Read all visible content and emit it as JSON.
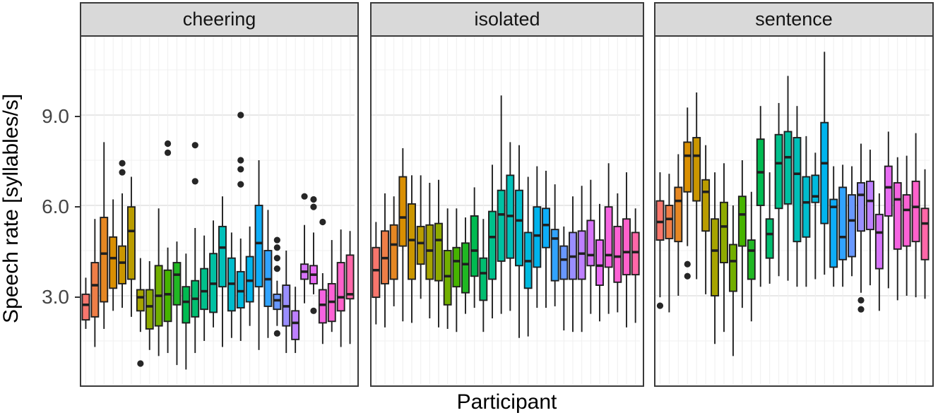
{
  "chart_data": {
    "type": "boxplot",
    "xlabel": "Participant",
    "ylabel": "Speech rate [syllables/s]",
    "yticks": [
      3.0,
      6.0,
      9.0
    ],
    "ytick_labels": [
      "3.0",
      "6.0",
      "9.0"
    ],
    "minor_gridlines": [
      1.5,
      4.5,
      7.5,
      10.5
    ],
    "ylim": [
      0.0,
      11.6
    ],
    "legend": "none",
    "grid": "on",
    "strip_bg": "#d9d9d9",
    "panel_border": "#3a3a3a",
    "box_stroke": "#1f1f1f",
    "colors": [
      "#F8766D",
      "#EF7E47",
      "#E58723",
      "#D98F02",
      "#CA9600",
      "#BA9D00",
      "#A7A400",
      "#8FAA00",
      "#72AF00",
      "#46B400",
      "#20B823",
      "#00BB51",
      "#00BE70",
      "#00C08B",
      "#00C1A2",
      "#00C0B9",
      "#00BDCD",
      "#00BADF",
      "#00B4ED",
      "#0DADF8",
      "#31A3FE",
      "#6898FF",
      "#9A8EFF",
      "#BE80FF",
      "#D674F9",
      "#E86CF3",
      "#F564E1",
      "#FC62D5",
      "#FF61CB",
      "#FF67A8"
    ],
    "facets": [
      {
        "label": "cheering",
        "boxes": [
          {
            "v": [
              1.9,
              2.2,
              2.7,
              3.05,
              3.6
            ],
            "out": []
          },
          {
            "v": [
              1.3,
              2.3,
              3.35,
              4.1,
              5.55
            ],
            "out": []
          },
          {
            "v": [
              1.9,
              2.8,
              4.4,
              5.6,
              8.1
            ],
            "out": []
          },
          {
            "v": [
              2.5,
              3.25,
              4.25,
              4.95,
              6.2
            ],
            "out": []
          },
          {
            "v": [
              2.6,
              3.4,
              4.1,
              4.65,
              6.4
            ],
            "out": [
              7.4,
              7.1
            ]
          },
          {
            "v": [
              2.3,
              3.55,
              5.15,
              5.95,
              6.95
            ],
            "out": []
          },
          {
            "v": [
              1.8,
              2.5,
              2.95,
              3.2,
              4.25
            ],
            "out": [
              0.75
            ]
          },
          {
            "v": [
              1.2,
              1.9,
              2.65,
              3.2,
              4.15
            ],
            "out": []
          },
          {
            "v": [
              1.0,
              2.0,
              3.0,
              4.0,
              5.9
            ],
            "out": []
          },
          {
            "v": [
              1.1,
              2.15,
              3.05,
              3.85,
              4.6
            ],
            "out": [
              8.05,
              7.75
            ]
          },
          {
            "v": [
              0.7,
              2.7,
              3.7,
              4.1,
              4.8
            ],
            "out": []
          },
          {
            "v": [
              0.55,
              2.1,
              2.8,
              3.3,
              4.4
            ],
            "out": []
          },
          {
            "v": [
              1.1,
              2.3,
              2.9,
              3.5,
              5.25
            ],
            "out": [
              8.0,
              6.8
            ]
          },
          {
            "v": [
              1.5,
              2.55,
              3.15,
              3.9,
              5.0
            ],
            "out": []
          },
          {
            "v": [
              1.95,
              2.45,
              3.4,
              4.4,
              5.5
            ],
            "out": []
          },
          {
            "v": [
              1.3,
              3.3,
              4.6,
              5.3,
              6.3
            ],
            "out": []
          },
          {
            "v": [
              1.6,
              2.5,
              3.4,
              4.25,
              5.1
            ],
            "out": []
          },
          {
            "v": [
              1.5,
              2.6,
              3.15,
              3.8,
              4.9
            ],
            "out": [
              9.0,
              7.5,
              7.2,
              6.7
            ]
          },
          {
            "v": [
              2.0,
              2.8,
              3.5,
              4.3,
              5.3
            ],
            "out": []
          },
          {
            "v": [
              1.2,
              3.3,
              4.75,
              6.0,
              7.5
            ],
            "out": []
          },
          {
            "v": [
              1.6,
              2.65,
              3.55,
              4.5,
              5.85
            ],
            "out": []
          },
          {
            "v": [
              2.0,
              2.55,
              2.85,
              3.05,
              3.5
            ],
            "out": [
              4.85,
              4.6,
              4.25,
              3.9,
              1.75
            ]
          },
          {
            "v": [
              1.1,
              2.0,
              2.65,
              3.35,
              4.5
            ],
            "out": []
          },
          {
            "v": [
              1.1,
              1.55,
              2.1,
              2.5,
              3.3
            ],
            "out": []
          },
          {
            "v": [
              2.75,
              3.55,
              3.8,
              4.05,
              5.35
            ],
            "out": [
              6.3
            ]
          },
          {
            "v": [
              3.05,
              3.4,
              3.7,
              4.0,
              5.1
            ],
            "out": [
              6.2,
              5.95,
              2.5
            ]
          },
          {
            "v": [
              1.4,
              2.1,
              2.7,
              3.2,
              3.75
            ],
            "out": [
              5.45
            ]
          },
          {
            "v": [
              1.8,
              2.15,
              2.8,
              3.4,
              4.85
            ],
            "out": []
          },
          {
            "v": [
              1.3,
              2.5,
              2.95,
              4.1,
              5.2
            ],
            "out": []
          },
          {
            "v": [
              1.4,
              2.9,
              3.05,
              4.35,
              5.15
            ],
            "out": []
          }
        ]
      },
      {
        "label": "isolated",
        "boxes": [
          {
            "v": [
              2.05,
              2.95,
              3.85,
              4.6,
              5.45
            ],
            "out": []
          },
          {
            "v": [
              1.95,
              3.4,
              4.25,
              5.15,
              6.4
            ],
            "out": []
          },
          {
            "v": [
              2.65,
              3.55,
              4.7,
              5.35,
              6.3
            ],
            "out": []
          },
          {
            "v": [
              2.15,
              4.65,
              5.6,
              6.95,
              7.9
            ],
            "out": []
          },
          {
            "v": [
              2.1,
              3.55,
              4.85,
              6.05,
              7.0
            ],
            "out": []
          },
          {
            "v": [
              2.9,
              4.05,
              4.75,
              5.3,
              7.0
            ],
            "out": []
          },
          {
            "v": [
              2.25,
              3.55,
              4.5,
              5.35,
              6.75
            ],
            "out": []
          },
          {
            "v": [
              1.95,
              3.5,
              4.85,
              5.4,
              6.85
            ],
            "out": []
          },
          {
            "v": [
              1.9,
              2.7,
              3.65,
              4.5,
              5.9
            ],
            "out": []
          },
          {
            "v": [
              1.8,
              3.3,
              4.15,
              4.6,
              5.9
            ],
            "out": []
          },
          {
            "v": [
              2.4,
              3.1,
              4.05,
              4.75,
              5.6
            ],
            "out": []
          },
          {
            "v": [
              2.6,
              3.65,
              4.5,
              5.65,
              6.6
            ],
            "out": []
          },
          {
            "v": [
              1.8,
              2.85,
              3.75,
              4.25,
              5.55
            ],
            "out": []
          },
          {
            "v": [
              2.25,
              3.55,
              4.95,
              5.8,
              7.35
            ],
            "out": []
          },
          {
            "v": [
              2.4,
              4.15,
              5.7,
              6.5,
              9.65
            ],
            "out": []
          },
          {
            "v": [
              2.5,
              4.25,
              5.65,
              7.0,
              8.1
            ],
            "out": []
          },
          {
            "v": [
              1.6,
              4.0,
              5.5,
              6.5,
              8.0
            ],
            "out": []
          },
          {
            "v": [
              1.65,
              3.25,
              4.15,
              5.1,
              6.95
            ],
            "out": []
          },
          {
            "v": [
              2.6,
              3.95,
              5.0,
              5.95,
              7.3
            ],
            "out": []
          },
          {
            "v": [
              2.6,
              4.6,
              5.35,
              5.9,
              7.15
            ],
            "out": []
          },
          {
            "v": [
              2.65,
              3.5,
              4.9,
              5.2,
              6.7
            ],
            "out": []
          },
          {
            "v": [
              1.85,
              3.55,
              4.2,
              4.65,
              5.3
            ],
            "out": []
          },
          {
            "v": [
              1.8,
              3.55,
              4.3,
              5.1,
              6.3
            ],
            "out": []
          },
          {
            "v": [
              1.8,
              3.55,
              4.4,
              5.15,
              6.65
            ],
            "out": []
          },
          {
            "v": [
              2.4,
              4.0,
              4.35,
              5.5,
              6.85
            ],
            "out": []
          },
          {
            "v": [
              2.15,
              3.35,
              4.0,
              4.85,
              6.05
            ],
            "out": []
          },
          {
            "v": [
              2.4,
              3.95,
              4.35,
              5.95,
              7.4
            ],
            "out": []
          },
          {
            "v": [
              2.45,
              3.45,
              4.3,
              5.3,
              6.4
            ],
            "out": []
          },
          {
            "v": [
              1.95,
              3.7,
              4.45,
              5.55,
              7.1
            ],
            "out": []
          },
          {
            "v": [
              2.1,
              3.7,
              4.45,
              5.1,
              5.9
            ],
            "out": []
          }
        ]
      },
      {
        "label": "sentence",
        "boxes": [
          {
            "v": [
              2.95,
              4.85,
              5.45,
              6.15,
              7.1
            ],
            "out": [
              2.67
            ]
          },
          {
            "v": [
              2.45,
              4.9,
              5.55,
              6.0,
              7.05
            ],
            "out": []
          },
          {
            "v": [
              3.0,
              4.8,
              6.15,
              6.6,
              7.7
            ],
            "out": []
          },
          {
            "v": [
              4.65,
              6.45,
              7.65,
              8.1,
              9.25
            ],
            "out": [
              4.05,
              3.65
            ]
          },
          {
            "v": [
              3.55,
              6.15,
              7.65,
              8.25,
              9.75
            ],
            "out": []
          },
          {
            "v": [
              3.05,
              5.15,
              6.45,
              6.85,
              8.0
            ],
            "out": []
          },
          {
            "v": [
              1.4,
              3.0,
              4.5,
              5.55,
              7.1
            ],
            "out": []
          },
          {
            "v": [
              1.8,
              4.1,
              5.3,
              6.1,
              7.4
            ],
            "out": []
          },
          {
            "v": [
              1.0,
              3.15,
              4.15,
              4.7,
              6.0
            ],
            "out": []
          },
          {
            "v": [
              2.6,
              4.65,
              5.7,
              6.3,
              7.5
            ],
            "out": []
          },
          {
            "v": [
              2.15,
              3.55,
              4.5,
              4.85,
              6.45
            ],
            "out": []
          },
          {
            "v": [
              3.3,
              6.0,
              7.1,
              8.2,
              9.3
            ],
            "out": []
          },
          {
            "v": [
              3.4,
              4.25,
              5.05,
              5.55,
              7.1
            ],
            "out": []
          },
          {
            "v": [
              3.65,
              5.9,
              7.4,
              8.35,
              9.4
            ],
            "out": []
          },
          {
            "v": [
              3.5,
              6.05,
              7.6,
              8.45,
              10.3
            ],
            "out": []
          },
          {
            "v": [
              3.3,
              4.8,
              7.05,
              8.25,
              9.3
            ],
            "out": []
          },
          {
            "v": [
              3.3,
              4.95,
              6.1,
              6.95,
              8.3
            ],
            "out": []
          },
          {
            "v": [
              3.55,
              6.1,
              6.3,
              7.0,
              7.75
            ],
            "out": []
          },
          {
            "v": [
              3.7,
              5.4,
              7.4,
              8.75,
              11.1
            ],
            "out": []
          },
          {
            "v": [
              3.3,
              3.95,
              5.95,
              6.2,
              7.3
            ],
            "out": []
          },
          {
            "v": [
              3.3,
              4.2,
              4.95,
              6.6,
              7.35
            ],
            "out": []
          },
          {
            "v": [
              3.65,
              4.3,
              5.5,
              6.35,
              7.3
            ],
            "out": []
          },
          {
            "v": [
              3.1,
              5.15,
              6.35,
              6.75,
              8.05
            ],
            "out": [
              2.85,
              2.55
            ]
          },
          {
            "v": [
              3.35,
              5.2,
              6.15,
              6.8,
              7.85
            ],
            "out": []
          },
          {
            "v": [
              2.5,
              3.9,
              5.1,
              5.7,
              6.4
            ],
            "out": []
          },
          {
            "v": [
              3.25,
              5.65,
              6.6,
              7.3,
              8.45
            ],
            "out": []
          },
          {
            "v": [
              2.85,
              4.55,
              6.2,
              6.75,
              7.6
            ],
            "out": []
          },
          {
            "v": [
              3.0,
              4.65,
              5.85,
              6.35,
              7.65
            ],
            "out": []
          },
          {
            "v": [
              2.95,
              4.8,
              5.95,
              6.8,
              8.4
            ],
            "out": []
          },
          {
            "v": [
              2.9,
              4.2,
              5.4,
              5.9,
              7.2
            ],
            "out": []
          }
        ]
      }
    ]
  }
}
